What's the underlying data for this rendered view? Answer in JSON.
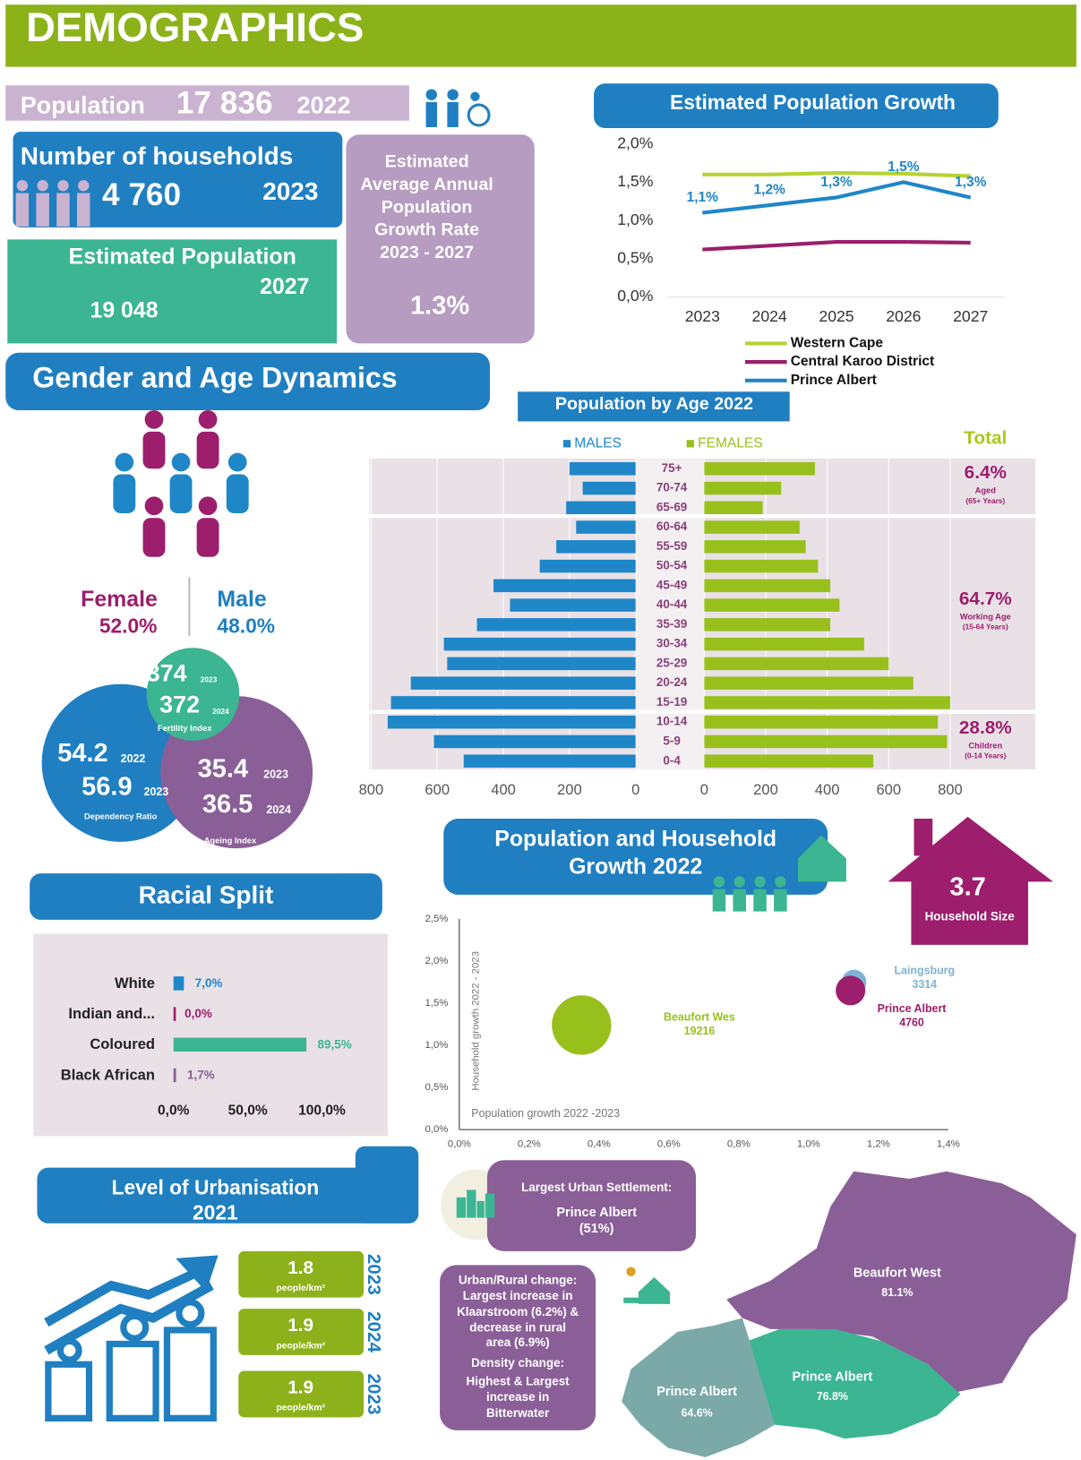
{
  "header": {
    "title": "DEMOGRAPHICS"
  },
  "population": {
    "label": "Population",
    "value": "17 836",
    "year": "2022"
  },
  "households": {
    "label": "Number of households",
    "value": "4 760",
    "year": "2023"
  },
  "est_population": {
    "label": "Estimated Population",
    "year": "2027",
    "value": "19 048"
  },
  "growth_rate": {
    "lines": [
      "Estimated",
      "Average Annual",
      "Population",
      "Growth Rate",
      "2023 - 2027"
    ],
    "value": "1.3%"
  },
  "gender": {
    "title": "Gender and Age Dynamics",
    "female_label": "Female",
    "female": "52.0%",
    "male_label": "Male",
    "male": "48.0%"
  },
  "ratios": {
    "fertility": {
      "a": "374",
      "a_year": "2023",
      "b": "372",
      "b_year": "2024",
      "label": "Fertility Index"
    },
    "dependency": {
      "a": "54.2",
      "a_year": "2022",
      "b": "56.9",
      "b_year": "2023",
      "label": "Dependency Ratio"
    },
    "ageing": {
      "a": "35.4",
      "a_year": "2023",
      "b": "36.5",
      "b_year": "2024",
      "label": "Ageing Index"
    }
  },
  "household_size": {
    "value": "3.7",
    "label": "Household Size"
  },
  "urbanisation": {
    "title": [
      "Level of Urbanisation",
      "2021"
    ],
    "densities": [
      {
        "value": "1.8",
        "unit": "people/km²",
        "year": "2023"
      },
      {
        "value": "1.9",
        "unit": "people/km²",
        "year": "2024"
      },
      {
        "value": "1.9",
        "unit": "people/km²",
        "year": "2023"
      }
    ],
    "settlement": [
      "Largest Urban Settlement:",
      "Prince Albert",
      "(51%)"
    ],
    "change": [
      "Urban/Rural change:",
      "Largest increase in",
      "Klaarstroom (6.2%) &",
      "decrease in rural",
      "area (6.9%)",
      "Density change:",
      "Highest & Largest",
      "increase in",
      "Bitterwater"
    ]
  },
  "map": {
    "regions": [
      {
        "name": "Beaufort West",
        "value": "81.1%"
      },
      {
        "name": "Prince Albert",
        "value": "76.8%"
      },
      {
        "name": "Prince Albert",
        "value": "64.6%"
      }
    ]
  },
  "chart_data": [
    {
      "type": "line",
      "title": "Estimated Population Growth",
      "categories": [
        "2023",
        "2024",
        "2025",
        "2026",
        "2027"
      ],
      "ylim": [
        0,
        2
      ],
      "yticks": [
        {
          "value": 0,
          "label": "0,0%"
        },
        {
          "value": 0.5,
          "label": "0,5%"
        },
        {
          "value": 1,
          "label": "1,0%"
        },
        {
          "value": 1.5,
          "label": "1,5%"
        },
        {
          "value": 2,
          "label": "2,0%"
        }
      ],
      "series": [
        {
          "name": "Western Cape",
          "color": "#b5d334",
          "values": [
            1.6,
            1.6,
            1.62,
            1.61,
            1.58
          ]
        },
        {
          "name": "Central Karoo District",
          "color": "#9c1e6c",
          "values": [
            0.62,
            0.67,
            0.72,
            0.72,
            0.71
          ]
        },
        {
          "name": "Prince Albert",
          "color": "#1f86c8",
          "values": [
            1.1,
            1.2,
            1.3,
            1.5,
            1.3
          ],
          "value_labels": [
            "1,1%",
            "1,2%",
            "1,3%",
            "1,5%",
            "1,3%"
          ]
        }
      ]
    },
    {
      "type": "pyramid",
      "title": "Population by Age 2022",
      "categories": [
        "75+",
        "70-74",
        "65-69",
        "60-64",
        "55-59",
        "50-54",
        "45-49",
        "40-44",
        "35-39",
        "30-34",
        "25-29",
        "20-24",
        "15-19",
        "10-14",
        "5-9",
        "0-4"
      ],
      "series": [
        {
          "name": "MALES",
          "color": "#1f86c8",
          "values": [
            200,
            160,
            210,
            180,
            240,
            290,
            430,
            380,
            480,
            580,
            570,
            680,
            740,
            750,
            610,
            520
          ]
        },
        {
          "name": "FEMALES",
          "color": "#98c01c",
          "values": [
            360,
            250,
            190,
            310,
            330,
            370,
            410,
            440,
            410,
            520,
            600,
            680,
            800,
            760,
            790,
            550
          ]
        }
      ],
      "xlim": [
        0,
        800
      ],
      "xticks": [
        0,
        200,
        400,
        600,
        800
      ],
      "total_label": "Total",
      "groups": [
        {
          "value": "6.4%",
          "label": "Aged",
          "range": "(65+ Years)"
        },
        {
          "value": "64.7%",
          "label": "Working Age",
          "range": "(15-64 Years)"
        },
        {
          "value": "28.8%",
          "label": "Children",
          "range": "(0-14 Years)"
        }
      ]
    },
    {
      "type": "bar",
      "title": "Racial Split",
      "categories": [
        "White",
        "Indian and...",
        "Coloured",
        "Black African"
      ],
      "values": [
        7.0,
        0.0,
        89.5,
        1.7
      ],
      "value_labels": [
        "7,0%",
        "0,0%",
        "89,5%",
        "1,7%"
      ],
      "colors": [
        "#1f86c8",
        "#9c1e6c",
        "#3bb592",
        "#8a5f98"
      ],
      "xlim": [
        0,
        100
      ],
      "xticks": [
        {
          "value": 0,
          "label": "0,0%"
        },
        {
          "value": 50,
          "label": "50,0%"
        },
        {
          "value": 100,
          "label": "100,0%"
        }
      ]
    },
    {
      "type": "bubble",
      "title": [
        "Population and Household",
        "Growth 2022"
      ],
      "xlabel": "Population growth 2022 -2023",
      "ylabel": "Household growth 2022 - 2023",
      "xlim": [
        0,
        1.4
      ],
      "xticks": [
        {
          "value": 0,
          "label": "0,0%"
        },
        {
          "value": 0.2,
          "label": "0,2%"
        },
        {
          "value": 0.4,
          "label": "0,4%"
        },
        {
          "value": 0.6,
          "label": "0,6%"
        },
        {
          "value": 0.8,
          "label": "0,8%"
        },
        {
          "value": 1,
          "label": "1,0%"
        },
        {
          "value": 1.2,
          "label": "1,2%"
        },
        {
          "value": 1.4,
          "label": "1,4%"
        }
      ],
      "ylim": [
        0,
        2.5
      ],
      "yticks": [
        {
          "value": 0,
          "label": "0,0%"
        },
        {
          "value": 0.5,
          "label": "0,5%"
        },
        {
          "value": 1,
          "label": "1,0%"
        },
        {
          "value": 1.5,
          "label": "1,5%"
        },
        {
          "value": 2,
          "label": "2,0%"
        },
        {
          "value": 2.5,
          "label": "2,5%"
        }
      ],
      "points": [
        {
          "name": "Beaufort Wes",
          "x": 0.35,
          "y": 1.24,
          "size": 19216,
          "color": "#98c01c"
        },
        {
          "name": "Laingsburg",
          "x": 1.13,
          "y": 1.75,
          "size": 3314,
          "color": "#7fb3d5"
        },
        {
          "name": "Prince Albert",
          "x": 1.12,
          "y": 1.65,
          "size": 4760,
          "color": "#9c1e6c"
        }
      ]
    }
  ]
}
